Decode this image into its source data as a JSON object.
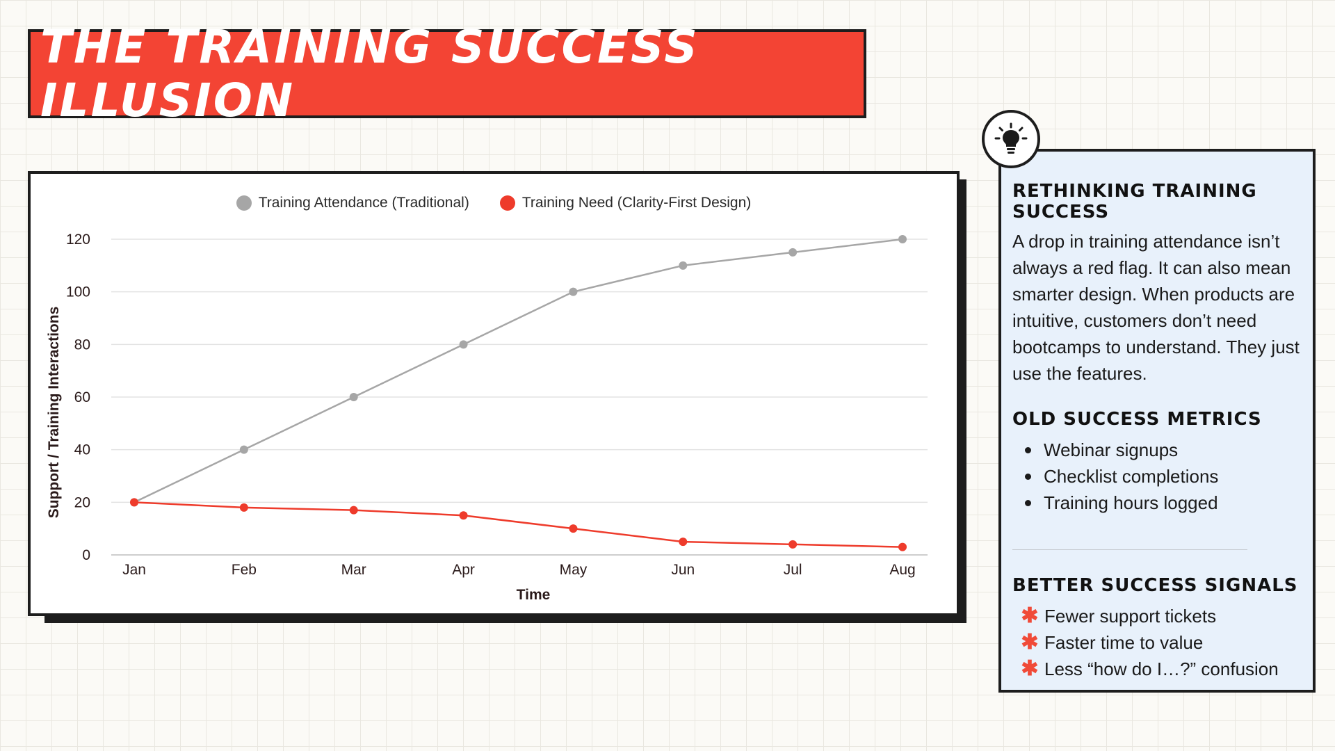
{
  "title": "THE TRAINING SUCCESS ILLUSION",
  "colors": {
    "accent": "#f34434",
    "series_gray": "#a6a6a6",
    "series_red": "#ee3b2b",
    "panel_bg": "#e8f1fb"
  },
  "chart_data": {
    "type": "line",
    "categories": [
      "Jan",
      "Feb",
      "Mar",
      "Apr",
      "May",
      "Jun",
      "Jul",
      "Aug"
    ],
    "series": [
      {
        "name": "Training Attendance (Traditional)",
        "color": "#a6a6a6",
        "values": [
          20,
          40,
          60,
          80,
          100,
          110,
          115,
          120
        ]
      },
      {
        "name": "Training Need (Clarity-First Design)",
        "color": "#ee3b2b",
        "values": [
          20,
          18,
          17,
          15,
          10,
          5,
          4,
          3
        ]
      }
    ],
    "xlabel": "Time",
    "ylabel": "Support / Training Interactions",
    "ylim": [
      0,
      120
    ],
    "yticks": [
      0,
      20,
      40,
      60,
      80,
      100,
      120
    ],
    "grid": true,
    "legend_position": "top-center"
  },
  "panel": {
    "icon": "lightbulb-icon",
    "heading1": "RETHINKING TRAINING SUCCESS",
    "paragraph": "A drop in training attendance isn’t always a red flag. It can also mean smarter design. When products are intuitive, customers don’t need bootcamps to understand. They just use the features.",
    "heading2": "OLD SUCCESS METRICS",
    "old_metrics": [
      "Webinar signups",
      "Checklist completions",
      "Training hours logged"
    ],
    "heading3": "BETTER SUCCESS SIGNALS",
    "better_signals": [
      "Fewer support tickets",
      "Faster time to value",
      "Less “how do I…?” confusion"
    ]
  }
}
